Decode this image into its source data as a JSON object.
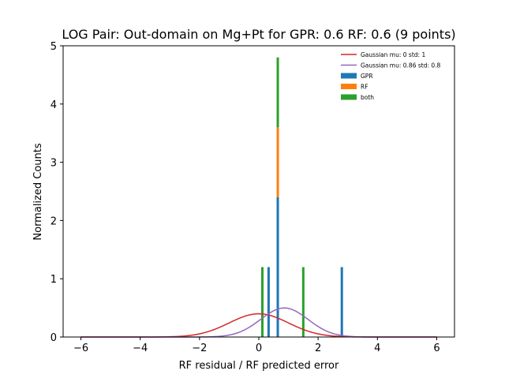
{
  "chart_data": {
    "type": "bar",
    "title": "LOG Pair: Out-domain on Mg+Pt for GPR: 0.6 RF: 0.6 (9 points)",
    "xlabel": "RF residual / RF predicted error",
    "ylabel": "Normalized Counts",
    "xlim": [
      -6.6,
      6.6
    ],
    "ylim": [
      0,
      5.0
    ],
    "xticks": [
      -6,
      -4,
      -2,
      0,
      2,
      4,
      6
    ],
    "xtick_labels": [
      "−6",
      "−4",
      "−2",
      "0",
      "2",
      "4",
      "6"
    ],
    "yticks": [
      0,
      1,
      2,
      3,
      4,
      5
    ],
    "ytick_labels": [
      "0",
      "1",
      "2",
      "3",
      "4",
      "5"
    ],
    "legend_position": "top-right",
    "bar_width": 0.08,
    "histogram_series": [
      {
        "name": "GPR",
        "color": "#1f77b4",
        "bars": [
          {
            "x": 0.33,
            "height": 1.2
          },
          {
            "x": 0.64,
            "height": 2.4
          },
          {
            "x": 2.8,
            "height": 1.2
          }
        ]
      },
      {
        "name": "RF",
        "color": "#ff7f0e",
        "bars": [
          {
            "x": 0.64,
            "bottom": 2.4,
            "height": 1.2
          }
        ]
      },
      {
        "name": "both",
        "color": "#2ca02c",
        "bars": [
          {
            "x": 0.12,
            "height": 1.2
          },
          {
            "x": 0.64,
            "bottom": 3.6,
            "height": 1.2
          },
          {
            "x": 1.5,
            "height": 1.2
          }
        ]
      }
    ],
    "curves": [
      {
        "name": "Gaussian mu: 0 std: 1",
        "color": "#d62728",
        "mu": 0,
        "std": 1,
        "x_range": [
          -6,
          6
        ]
      },
      {
        "name": "Gaussian mu: 0.86 std: 0.8",
        "color": "#9467bd",
        "mu": 0.86,
        "std": 0.8,
        "x_range": [
          -6,
          6
        ]
      }
    ]
  }
}
